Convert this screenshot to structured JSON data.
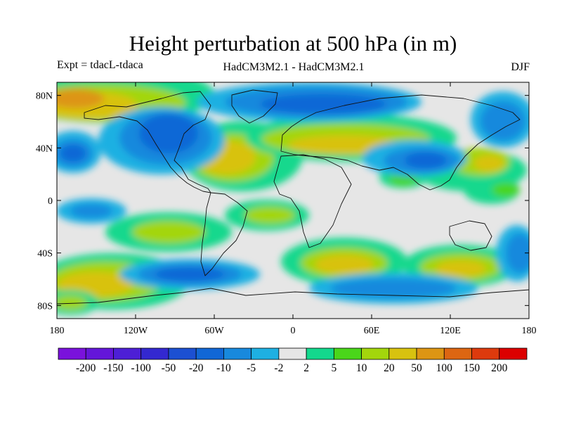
{
  "title": "Height perturbation at 500 hPa (in m)",
  "left_label": "Expt = tdacL-tdaca",
  "center_label": "HadCM3M2.1 - HadCM3M2.1",
  "right_label": "DJF",
  "lat_ticks": [
    {
      "label": "80N",
      "lat": 80
    },
    {
      "label": "40N",
      "lat": 40
    },
    {
      "label": "0",
      "lat": 0
    },
    {
      "label": "40S",
      "lat": -40
    },
    {
      "label": "80S",
      "lat": -80
    }
  ],
  "lon_ticks": [
    {
      "label": "180",
      "lon": -180
    },
    {
      "label": "120W",
      "lon": -120
    },
    {
      "label": "60W",
      "lon": -60
    },
    {
      "label": "0",
      "lon": 0
    },
    {
      "label": "60E",
      "lon": 60
    },
    {
      "label": "120E",
      "lon": 120
    },
    {
      "label": "180",
      "lon": 180
    }
  ],
  "colorbar": {
    "colors": [
      "#7a12dc",
      "#6416d9",
      "#4d1fd6",
      "#3328d0",
      "#1c50d2",
      "#1167d6",
      "#1889dd",
      "#1eb0e2",
      "#e6e6e6",
      "#13d88d",
      "#4ad61a",
      "#a3d60c",
      "#d8c20f",
      "#dd9513",
      "#dd6612",
      "#dd3a0d",
      "#dc0000"
    ],
    "labels": [
      "-200",
      "-150",
      "-100",
      "-50",
      "-20",
      "-10",
      "-5",
      "-2",
      "2",
      "5",
      "10",
      "20",
      "50",
      "100",
      "150",
      "200"
    ]
  },
  "field_colors": {
    "neutral": "#e6e6e6",
    "pos2": "#13d88d",
    "pos3": "#4ad61a",
    "pos4": "#a3d60c",
    "pos5": "#d8c20f",
    "pos6": "#dd9513",
    "neg2": "#1eb0e2",
    "neg3": "#1889dd",
    "neg4": "#1167d6",
    "neg5": "#1c50d2"
  }
}
